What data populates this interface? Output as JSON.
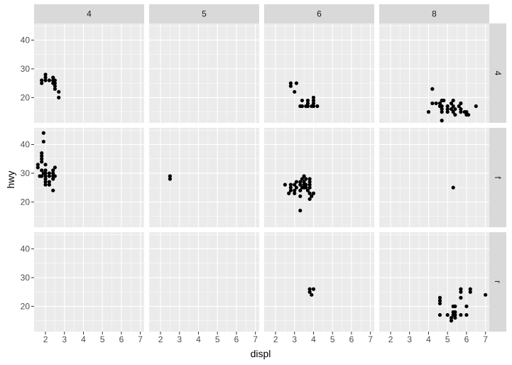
{
  "chart_data": {
    "type": "scatter",
    "xlabel": "displ",
    "ylabel": "hwy",
    "xlim": [
      1.4,
      7.2
    ],
    "ylim": [
      11.2,
      45.8
    ],
    "x_ticks": [
      2,
      3,
      4,
      5,
      6,
      7
    ],
    "y_ticks": [
      20,
      30,
      40
    ],
    "facet_cols": [
      "4",
      "5",
      "6",
      "8"
    ],
    "facet_rows": [
      "4",
      "f",
      "r"
    ],
    "colors": {
      "panel_background": "#ebebeb",
      "grid_major": "#ffffff",
      "strip_background": "#d9d9d9",
      "point": "#000000"
    },
    "panels": [
      {
        "row": "4",
        "col": "4",
        "points": [
          [
            1.8,
            25
          ],
          [
            1.8,
            26
          ],
          [
            2.0,
            26
          ],
          [
            2.0,
            28
          ],
          [
            2.0,
            27
          ],
          [
            2.2,
            26
          ],
          [
            2.4,
            25
          ],
          [
            2.4,
            26
          ],
          [
            2.4,
            27
          ],
          [
            2.5,
            26
          ],
          [
            2.5,
            24
          ],
          [
            2.5,
            23
          ],
          [
            2.5,
            25
          ],
          [
            2.7,
            22
          ],
          [
            2.7,
            20
          ]
        ]
      },
      {
        "row": "4",
        "col": "5",
        "points": []
      },
      {
        "row": "4",
        "col": "6",
        "points": [
          [
            2.8,
            25
          ],
          [
            2.8,
            24
          ],
          [
            3.0,
            22
          ],
          [
            3.1,
            25
          ],
          [
            3.3,
            17
          ],
          [
            3.4,
            17
          ],
          [
            3.4,
            19
          ],
          [
            3.7,
            18
          ],
          [
            3.7,
            19
          ],
          [
            3.7,
            17
          ],
          [
            3.9,
            17
          ],
          [
            4.0,
            17
          ],
          [
            4.0,
            18
          ],
          [
            4.0,
            19
          ],
          [
            4.0,
            20
          ],
          [
            4.2,
            17
          ],
          [
            3.6,
            17
          ]
        ]
      },
      {
        "row": "4",
        "col": "8",
        "points": [
          [
            4.0,
            15
          ],
          [
            4.2,
            23
          ],
          [
            4.2,
            18
          ],
          [
            4.4,
            18
          ],
          [
            4.6,
            17
          ],
          [
            4.6,
            18
          ],
          [
            4.7,
            19
          ],
          [
            4.7,
            17
          ],
          [
            4.7,
            16
          ],
          [
            4.7,
            15
          ],
          [
            4.7,
            12
          ],
          [
            4.8,
            19
          ],
          [
            5.0,
            15
          ],
          [
            5.0,
            16
          ],
          [
            5.0,
            17
          ],
          [
            5.2,
            18
          ],
          [
            5.2,
            16
          ],
          [
            5.3,
            19
          ],
          [
            5.3,
            17
          ],
          [
            5.3,
            15
          ],
          [
            5.4,
            14
          ],
          [
            5.4,
            16
          ],
          [
            5.6,
            17
          ],
          [
            5.7,
            18
          ],
          [
            5.7,
            16
          ],
          [
            5.7,
            15
          ],
          [
            5.9,
            15
          ],
          [
            6.0,
            14
          ],
          [
            6.0,
            15
          ],
          [
            6.1,
            14
          ],
          [
            6.5,
            17
          ]
        ]
      },
      {
        "row": "f",
        "col": "4",
        "points": [
          [
            1.6,
            32
          ],
          [
            1.6,
            33
          ],
          [
            1.7,
            29
          ],
          [
            1.8,
            34
          ],
          [
            1.8,
            35
          ],
          [
            1.8,
            36
          ],
          [
            1.8,
            37
          ],
          [
            1.8,
            31
          ],
          [
            1.8,
            29
          ],
          [
            1.9,
            44
          ],
          [
            1.9,
            41
          ],
          [
            1.9,
            30
          ],
          [
            2.0,
            28
          ],
          [
            2.0,
            29
          ],
          [
            2.0,
            30
          ],
          [
            2.0,
            31
          ],
          [
            2.0,
            26
          ],
          [
            2.0,
            27
          ],
          [
            2.2,
            26
          ],
          [
            2.2,
            27
          ],
          [
            2.2,
            29
          ],
          [
            2.2,
            30
          ],
          [
            2.4,
            29
          ],
          [
            2.4,
            30
          ],
          [
            2.4,
            31
          ],
          [
            2.4,
            28
          ],
          [
            2.4,
            24
          ],
          [
            2.5,
            29
          ],
          [
            2.5,
            32
          ],
          [
            2.0,
            33
          ]
        ]
      },
      {
        "row": "f",
        "col": "5",
        "points": [
          [
            2.5,
            29
          ],
          [
            2.5,
            28
          ]
        ]
      },
      {
        "row": "f",
        "col": "6",
        "points": [
          [
            2.5,
            26
          ],
          [
            2.7,
            23
          ],
          [
            2.8,
            26
          ],
          [
            2.8,
            24
          ],
          [
            2.8,
            25
          ],
          [
            3.0,
            24
          ],
          [
            3.0,
            26
          ],
          [
            3.0,
            23
          ],
          [
            3.1,
            27
          ],
          [
            3.1,
            25
          ],
          [
            3.3,
            27
          ],
          [
            3.3,
            26
          ],
          [
            3.3,
            24
          ],
          [
            3.3,
            22
          ],
          [
            3.3,
            17
          ],
          [
            3.4,
            25
          ],
          [
            3.4,
            28
          ],
          [
            3.5,
            29
          ],
          [
            3.5,
            26
          ],
          [
            3.5,
            25
          ],
          [
            3.5,
            27
          ],
          [
            3.6,
            28
          ],
          [
            3.6,
            26
          ],
          [
            3.7,
            24
          ],
          [
            3.8,
            26
          ],
          [
            3.8,
            25
          ],
          [
            3.8,
            23
          ],
          [
            3.8,
            21
          ],
          [
            3.8,
            28
          ],
          [
            3.8,
            27
          ],
          [
            3.9,
            22
          ],
          [
            4.0,
            23
          ],
          [
            3.6,
            25
          ]
        ]
      },
      {
        "row": "f",
        "col": "8",
        "points": [
          [
            5.3,
            25
          ]
        ]
      },
      {
        "row": "r",
        "col": "4",
        "points": []
      },
      {
        "row": "r",
        "col": "5",
        "points": []
      },
      {
        "row": "r",
        "col": "6",
        "points": [
          [
            3.8,
            26
          ],
          [
            3.8,
            25
          ],
          [
            3.9,
            24
          ],
          [
            4.0,
            26
          ]
        ]
      },
      {
        "row": "r",
        "col": "8",
        "points": [
          [
            4.6,
            17
          ],
          [
            4.6,
            21
          ],
          [
            4.6,
            22
          ],
          [
            4.6,
            23
          ],
          [
            5.0,
            17
          ],
          [
            5.2,
            15
          ],
          [
            5.2,
            16
          ],
          [
            5.3,
            18
          ],
          [
            5.3,
            20
          ],
          [
            5.3,
            17
          ],
          [
            5.4,
            20
          ],
          [
            5.4,
            16
          ],
          [
            5.4,
            17
          ],
          [
            5.4,
            18
          ],
          [
            5.7,
            26
          ],
          [
            5.7,
            25
          ],
          [
            5.7,
            23
          ],
          [
            5.7,
            17
          ],
          [
            6.0,
            17
          ],
          [
            6.2,
            25
          ],
          [
            6.2,
            26
          ],
          [
            6.0,
            20
          ],
          [
            7.0,
            24
          ]
        ]
      }
    ]
  }
}
